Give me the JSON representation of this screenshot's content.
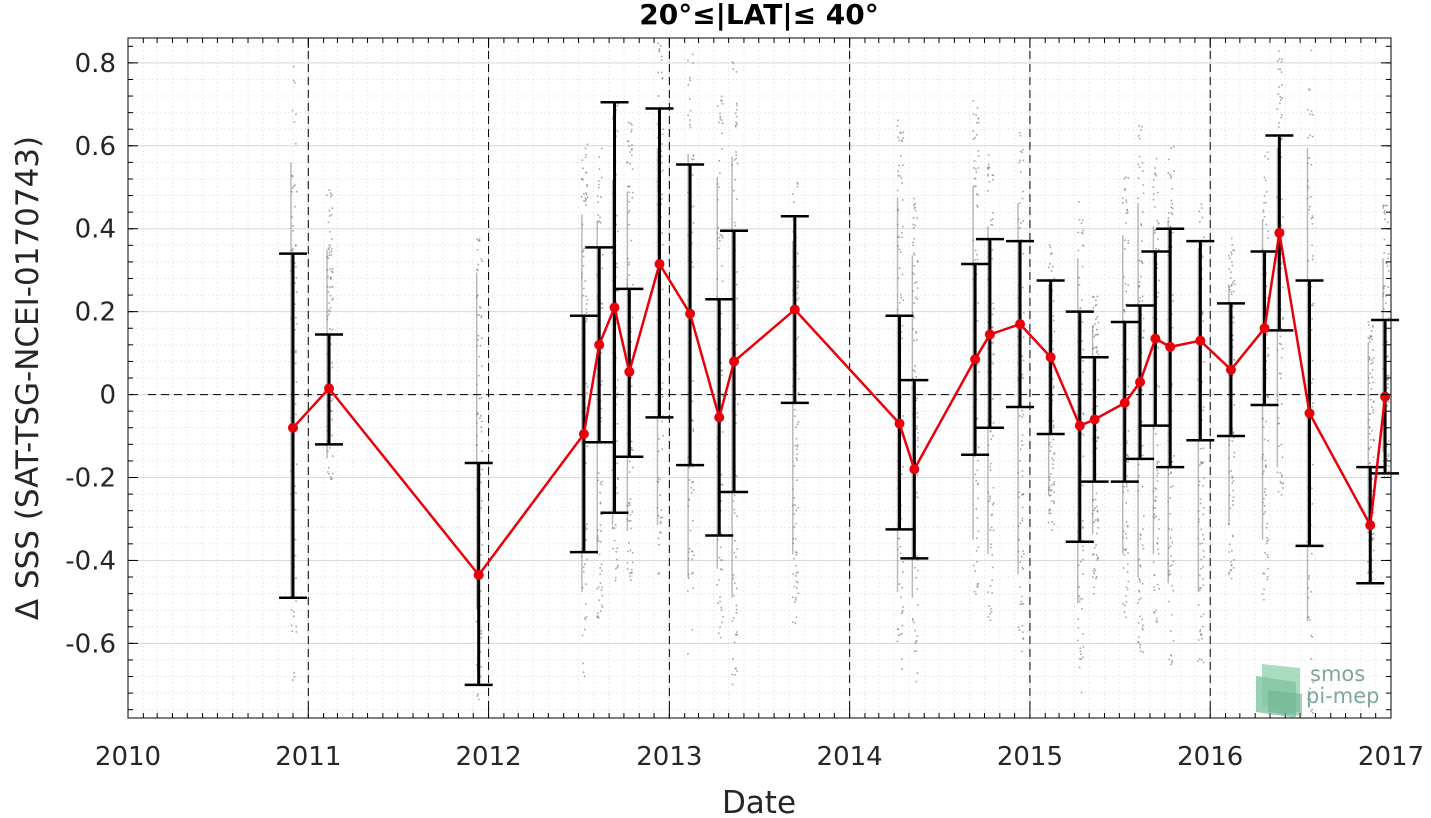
{
  "chart_data": {
    "type": "scatter",
    "title": "20°≤|LAT|≤ 40°",
    "xlabel": "Date",
    "ylabel": "Δ SSS (SAT-TSG-NCEI-0170743)",
    "xlim": [
      "2010-01-01",
      "2017-01-01"
    ],
    "ylim": [
      -0.78,
      0.86
    ],
    "x_ticks": [
      "2010",
      "2011",
      "2012",
      "2013",
      "2014",
      "2015",
      "2016",
      "2017"
    ],
    "y_ticks": [
      {
        "value": 0.8,
        "label": "0.8"
      },
      {
        "value": 0.6,
        "label": "0.6"
      },
      {
        "value": 0.4,
        "label": "0.4"
      },
      {
        "value": 0.2,
        "label": "0.2"
      },
      {
        "value": 0,
        "label": "0"
      },
      {
        "value": -0.2,
        "label": "-0.2"
      },
      {
        "value": -0.4,
        "label": "-0.4"
      },
      {
        "value": -0.6,
        "label": "-0.6"
      }
    ],
    "grid": true,
    "zero_line": true,
    "vertical_year_lines": true,
    "colors": {
      "mean_line": "#e8000b",
      "error_bars": "#000000",
      "raw_points": "#808080",
      "grid": "#d9d9d9"
    },
    "series": [
      {
        "type": "line+errorbar",
        "points": [
          {
            "x": "2010-12-01",
            "y": -0.08,
            "lo": -0.49,
            "hi": 0.34
          },
          {
            "x": "2011-02-12",
            "y": 0.015,
            "lo": -0.12,
            "hi": 0.145
          },
          {
            "x": "2011-12-12",
            "y": -0.435,
            "lo": -0.7,
            "hi": -0.165
          },
          {
            "x": "2012-07-12",
            "y": -0.095,
            "lo": -0.38,
            "hi": 0.19
          },
          {
            "x": "2012-08-12",
            "y": 0.12,
            "lo": -0.115,
            "hi": 0.355
          },
          {
            "x": "2012-09-12",
            "y": 0.21,
            "lo": -0.285,
            "hi": 0.705
          },
          {
            "x": "2012-10-12",
            "y": 0.055,
            "lo": -0.15,
            "hi": 0.255
          },
          {
            "x": "2012-12-12",
            "y": 0.315,
            "lo": -0.055,
            "hi": 0.69
          },
          {
            "x": "2013-02-12",
            "y": 0.195,
            "lo": -0.17,
            "hi": 0.555
          },
          {
            "x": "2013-04-12",
            "y": -0.055,
            "lo": -0.34,
            "hi": 0.23
          },
          {
            "x": "2013-05-12",
            "y": 0.08,
            "lo": -0.235,
            "hi": 0.395
          },
          {
            "x": "2013-09-12",
            "y": 0.205,
            "lo": -0.02,
            "hi": 0.43
          },
          {
            "x": "2014-04-12",
            "y": -0.07,
            "lo": -0.325,
            "hi": 0.19
          },
          {
            "x": "2014-05-12",
            "y": -0.18,
            "lo": -0.395,
            "hi": 0.035
          },
          {
            "x": "2014-09-12",
            "y": 0.085,
            "lo": -0.145,
            "hi": 0.315
          },
          {
            "x": "2014-10-12",
            "y": 0.145,
            "lo": -0.08,
            "hi": 0.375
          },
          {
            "x": "2014-12-12",
            "y": 0.17,
            "lo": -0.03,
            "hi": 0.37
          },
          {
            "x": "2015-02-12",
            "y": 0.09,
            "lo": -0.095,
            "hi": 0.275
          },
          {
            "x": "2015-04-12",
            "y": -0.075,
            "lo": -0.355,
            "hi": 0.2
          },
          {
            "x": "2015-05-12",
            "y": -0.06,
            "lo": -0.21,
            "hi": 0.09
          },
          {
            "x": "2015-07-12",
            "y": -0.02,
            "lo": -0.21,
            "hi": 0.175
          },
          {
            "x": "2015-08-12",
            "y": 0.03,
            "lo": -0.155,
            "hi": 0.215
          },
          {
            "x": "2015-09-12",
            "y": 0.135,
            "lo": -0.075,
            "hi": 0.345
          },
          {
            "x": "2015-10-12",
            "y": 0.115,
            "lo": -0.175,
            "hi": 0.4
          },
          {
            "x": "2015-12-12",
            "y": 0.13,
            "lo": -0.11,
            "hi": 0.37
          },
          {
            "x": "2016-02-12",
            "y": 0.06,
            "lo": -0.1,
            "hi": 0.22
          },
          {
            "x": "2016-04-20",
            "y": 0.16,
            "lo": -0.025,
            "hi": 0.345
          },
          {
            "x": "2016-05-20",
            "y": 0.39,
            "lo": 0.155,
            "hi": 0.625
          },
          {
            "x": "2016-07-20",
            "y": -0.045,
            "lo": -0.365,
            "hi": 0.275
          },
          {
            "x": "2016-11-20",
            "y": -0.315,
            "lo": -0.455,
            "hi": -0.175
          },
          {
            "x": "2016-12-20",
            "y": -0.005,
            "lo": -0.19,
            "hi": 0.18
          }
        ]
      }
    ],
    "raw_point_columns": [
      {
        "x": "2010-12-01",
        "lo": -0.7,
        "hi": 0.8
      },
      {
        "x": "2011-02-12",
        "lo": -0.22,
        "hi": 0.5
      },
      {
        "x": "2011-12-12",
        "lo": -0.74,
        "hi": 0.42
      },
      {
        "x": "2012-07-12",
        "lo": -0.68,
        "hi": 0.62
      },
      {
        "x": "2012-08-12",
        "lo": -0.55,
        "hi": 0.6
      },
      {
        "x": "2012-09-12",
        "lo": -0.45,
        "hi": 0.74
      },
      {
        "x": "2012-10-12",
        "lo": -0.47,
        "hi": 0.7
      },
      {
        "x": "2012-12-12",
        "lo": -0.45,
        "hi": 0.85
      },
      {
        "x": "2013-02-12",
        "lo": -0.63,
        "hi": 0.83
      },
      {
        "x": "2013-04-12",
        "lo": -0.6,
        "hi": 0.75
      },
      {
        "x": "2013-05-12",
        "lo": -0.7,
        "hi": 0.82
      },
      {
        "x": "2013-09-12",
        "lo": -0.55,
        "hi": 0.53
      },
      {
        "x": "2014-04-12",
        "lo": -0.68,
        "hi": 0.68
      },
      {
        "x": "2014-05-12",
        "lo": -0.7,
        "hi": 0.48
      },
      {
        "x": "2014-09-12",
        "lo": -0.5,
        "hi": 0.72
      },
      {
        "x": "2014-10-12",
        "lo": -0.55,
        "hi": 0.58
      },
      {
        "x": "2014-12-12",
        "lo": -0.62,
        "hi": 0.66
      },
      {
        "x": "2015-02-12",
        "lo": -0.35,
        "hi": 0.38
      },
      {
        "x": "2015-04-12",
        "lo": -0.72,
        "hi": 0.47
      },
      {
        "x": "2015-05-12",
        "lo": -0.48,
        "hi": 0.24
      },
      {
        "x": "2015-07-12",
        "lo": -0.55,
        "hi": 0.55
      },
      {
        "x": "2015-08-12",
        "lo": -0.63,
        "hi": 0.66
      },
      {
        "x": "2015-09-12",
        "lo": -0.55,
        "hi": 0.58
      },
      {
        "x": "2015-10-12",
        "lo": -0.65,
        "hi": 0.6
      },
      {
        "x": "2015-12-12",
        "lo": -0.68,
        "hi": 0.5
      },
      {
        "x": "2016-02-12",
        "lo": -0.45,
        "hi": 0.38
      },
      {
        "x": "2016-04-20",
        "lo": -0.5,
        "hi": 0.6
      },
      {
        "x": "2016-05-20",
        "lo": -0.25,
        "hi": 0.85
      },
      {
        "x": "2016-07-20",
        "lo": -0.78,
        "hi": 0.85
      },
      {
        "x": "2016-11-20",
        "lo": -0.45,
        "hi": 0.18
      },
      {
        "x": "2016-12-20",
        "lo": -0.2,
        "hi": 0.47
      }
    ]
  },
  "logo": {
    "line1": "smos",
    "line2": "pi-mep",
    "text_color": "#7fa89a",
    "mark_color": "#6fbf8f"
  }
}
